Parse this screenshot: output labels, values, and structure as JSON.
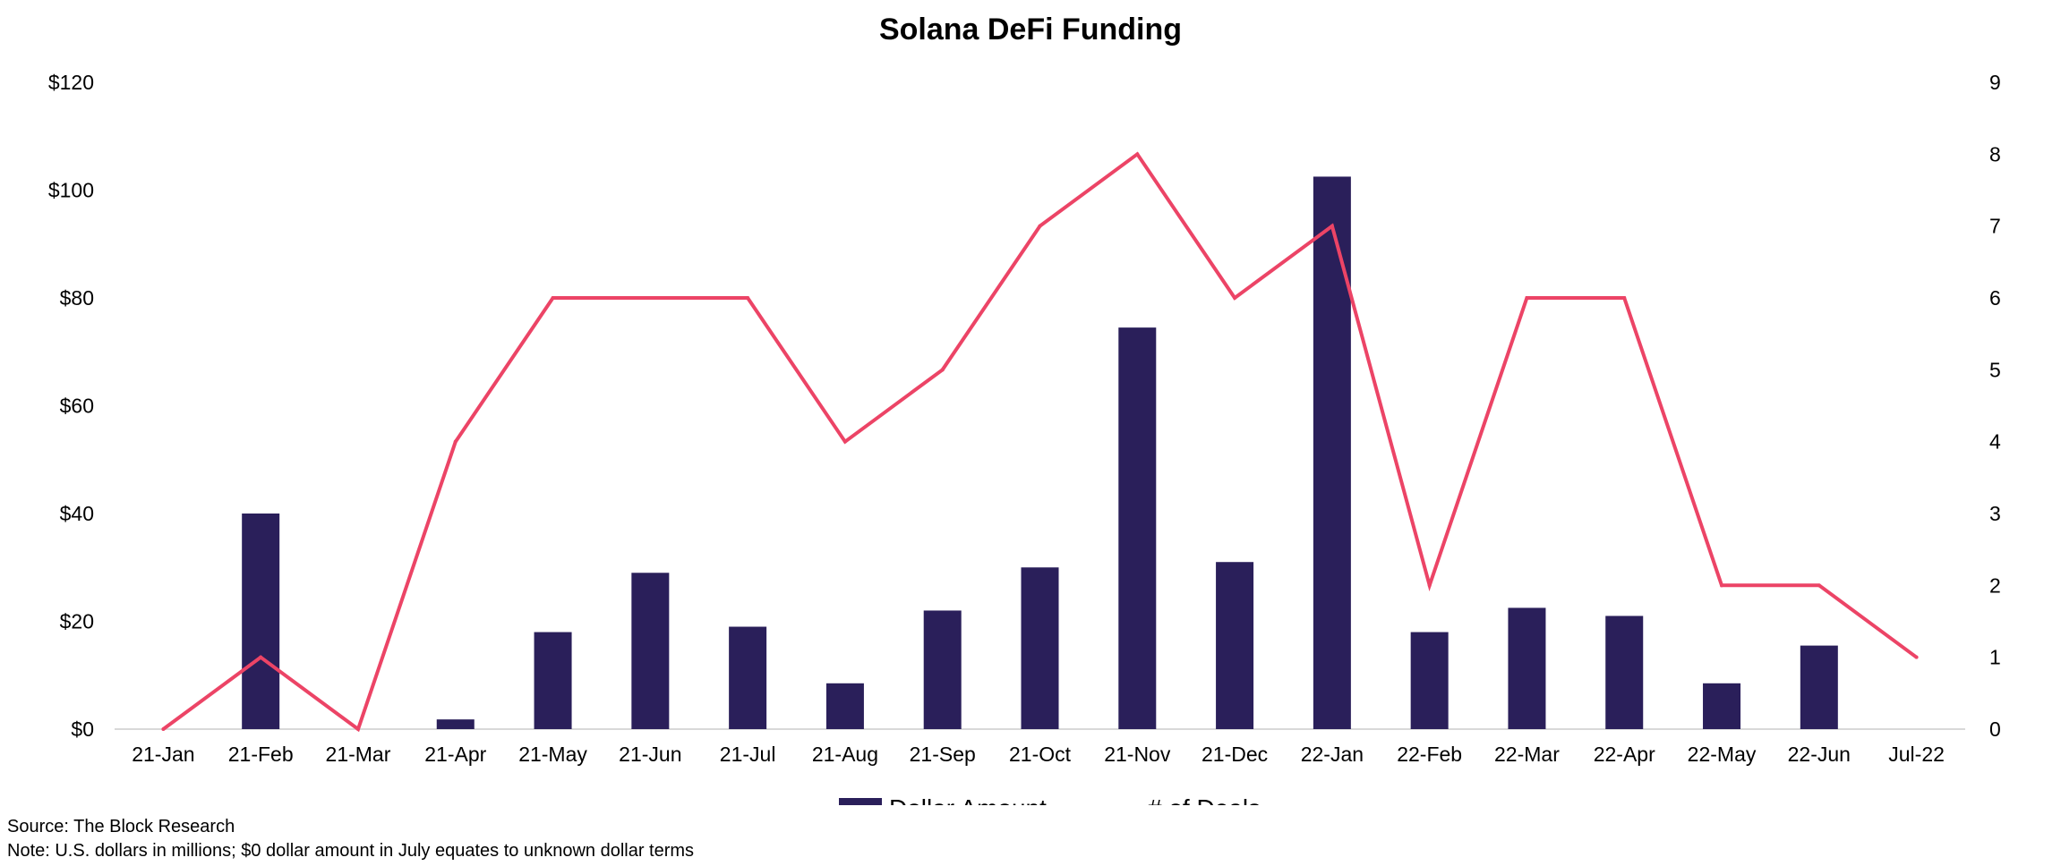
{
  "chart_data": {
    "type": "bar",
    "title": "Solana DeFi Funding",
    "categories": [
      "21-Jan",
      "21-Feb",
      "21-Mar",
      "21-Apr",
      "21-May",
      "21-Jun",
      "21-Jul",
      "21-Aug",
      "21-Sep",
      "21-Oct",
      "21-Nov",
      "21-Dec",
      "22-Jan",
      "22-Feb",
      "22-Mar",
      "22-Apr",
      "22-May",
      "22-Jun",
      "Jul-22"
    ],
    "series": [
      {
        "name": "Dollar Amount",
        "type": "bar",
        "axis": "left",
        "color": "#2a1f5a",
        "values": [
          0,
          40,
          0,
          1.8,
          18,
          29,
          19,
          8.5,
          22,
          30,
          74.5,
          31,
          102.5,
          18,
          22.5,
          21,
          8.5,
          15.5,
          0
        ]
      },
      {
        "name": "# of Deals",
        "type": "line",
        "axis": "right",
        "color": "#ec4466",
        "values": [
          0,
          1,
          0,
          4,
          6,
          6,
          6,
          4,
          5,
          7,
          8,
          6,
          7,
          2,
          6,
          6,
          2,
          2,
          1
        ]
      }
    ],
    "y_left": {
      "ylim": [
        0,
        120
      ],
      "ticks": [
        0,
        20,
        40,
        60,
        80,
        100,
        120
      ],
      "tick_labels": [
        "$0",
        "$20",
        "$40",
        "$60",
        "$80",
        "$100",
        "$120"
      ]
    },
    "y_right": {
      "ylim": [
        0,
        9
      ],
      "ticks": [
        0,
        1,
        2,
        3,
        4,
        5,
        6,
        7,
        8,
        9
      ],
      "tick_labels": [
        "0",
        "1",
        "2",
        "3",
        "4",
        "5",
        "6",
        "7",
        "8",
        "9"
      ]
    },
    "grid": false,
    "legend_position": "bottom-center"
  },
  "notes": {
    "source": "Source: The Block Research",
    "note": "Note: U.S. dollars in millions; $0 dollar amount in July equates to unknown dollar terms"
  }
}
